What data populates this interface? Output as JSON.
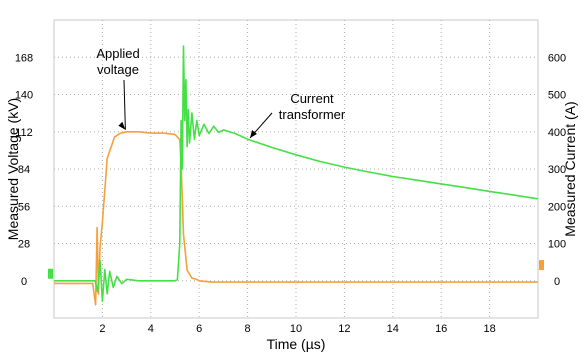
{
  "chart_data": {
    "type": "line",
    "title": "",
    "xlabel": "Time (µs)",
    "ylabel_left": "Measured Voltage (kV)",
    "ylabel_right": "Measured Current (A)",
    "xlim": [
      0,
      20
    ],
    "ylim_left": [
      -28,
      196
    ],
    "ylim_right": [
      -100,
      700
    ],
    "x_ticks": [
      2,
      4,
      6,
      8,
      10,
      12,
      14,
      16,
      18
    ],
    "x_tick_labels": [
      "2",
      "4",
      "6",
      "8",
      "10",
      "12",
      "14",
      "16",
      "18"
    ],
    "y_left_ticks": [
      0,
      28,
      56,
      84,
      112,
      140,
      168
    ],
    "y_left_tick_labels": [
      "0",
      "28",
      "56",
      "84",
      "112",
      "140",
      "168"
    ],
    "y_right_ticks": [
      0,
      100,
      200,
      300,
      400,
      500,
      600
    ],
    "y_right_tick_labels": [
      "0",
      "100",
      "200",
      "300",
      "400",
      "500",
      "600"
    ],
    "grid": true,
    "series": [
      {
        "name": "Applied voltage",
        "color": "#f5a03a",
        "axis": "left",
        "x": [
          0,
          1.4,
          1.6,
          1.72,
          1.78,
          1.84,
          1.9,
          2.0,
          2.2,
          2.5,
          2.75,
          3.0,
          3.5,
          4.0,
          4.5,
          5.0,
          5.2,
          5.25,
          5.35,
          5.5,
          5.7,
          5.9,
          6.0,
          6.5,
          8,
          10,
          12,
          14,
          16,
          18,
          20
        ],
        "y": [
          -2,
          -2,
          -2,
          -18,
          40,
          -10,
          25,
          44,
          92,
          108,
          111,
          112,
          112,
          111,
          111,
          110,
          106,
          88,
          35,
          8,
          2,
          1,
          0,
          -1,
          -1,
          -1,
          -1,
          -1,
          -1,
          -1,
          -1
        ]
      },
      {
        "name": "Current transformer",
        "color": "#45e045",
        "axis": "right",
        "x": [
          0,
          1.6,
          1.7,
          1.8,
          1.9,
          2.0,
          2.1,
          2.2,
          2.3,
          2.45,
          2.6,
          2.8,
          3.0,
          3.5,
          4.0,
          4.5,
          5.0,
          5.1,
          5.2,
          5.25,
          5.3,
          5.35,
          5.4,
          5.45,
          5.5,
          5.55,
          5.6,
          5.7,
          5.8,
          5.9,
          6.0,
          6.2,
          6.4,
          6.6,
          6.8,
          7.0,
          7.5,
          8.0,
          9,
          10,
          11,
          12,
          13,
          14,
          15,
          16,
          17,
          18,
          19,
          20
        ],
        "y": [
          0,
          0,
          0,
          -30,
          55,
          -55,
          30,
          -35,
          25,
          -18,
          12,
          -8,
          4,
          0,
          0,
          0,
          0,
          3,
          100,
          430,
          300,
          630,
          430,
          540,
          360,
          460,
          370,
          450,
          380,
          430,
          390,
          420,
          395,
          415,
          398,
          405,
          395,
          380,
          358,
          338,
          320,
          305,
          292,
          280,
          270,
          260,
          250,
          240,
          230,
          220
        ]
      }
    ],
    "annotations": [
      {
        "text_lines": [
          "Applied",
          "voltage"
        ],
        "target_series": "Applied voltage",
        "target_x": 2.95,
        "target_y": 112
      },
      {
        "text_lines": [
          "Current",
          "transformer"
        ],
        "target_series": "Current transformer",
        "target_x": 8.1,
        "target_y": 378
      }
    ],
    "colors": {
      "voltage": "#f5a03a",
      "current": "#45e045",
      "grid": "#b0b0b0"
    }
  }
}
